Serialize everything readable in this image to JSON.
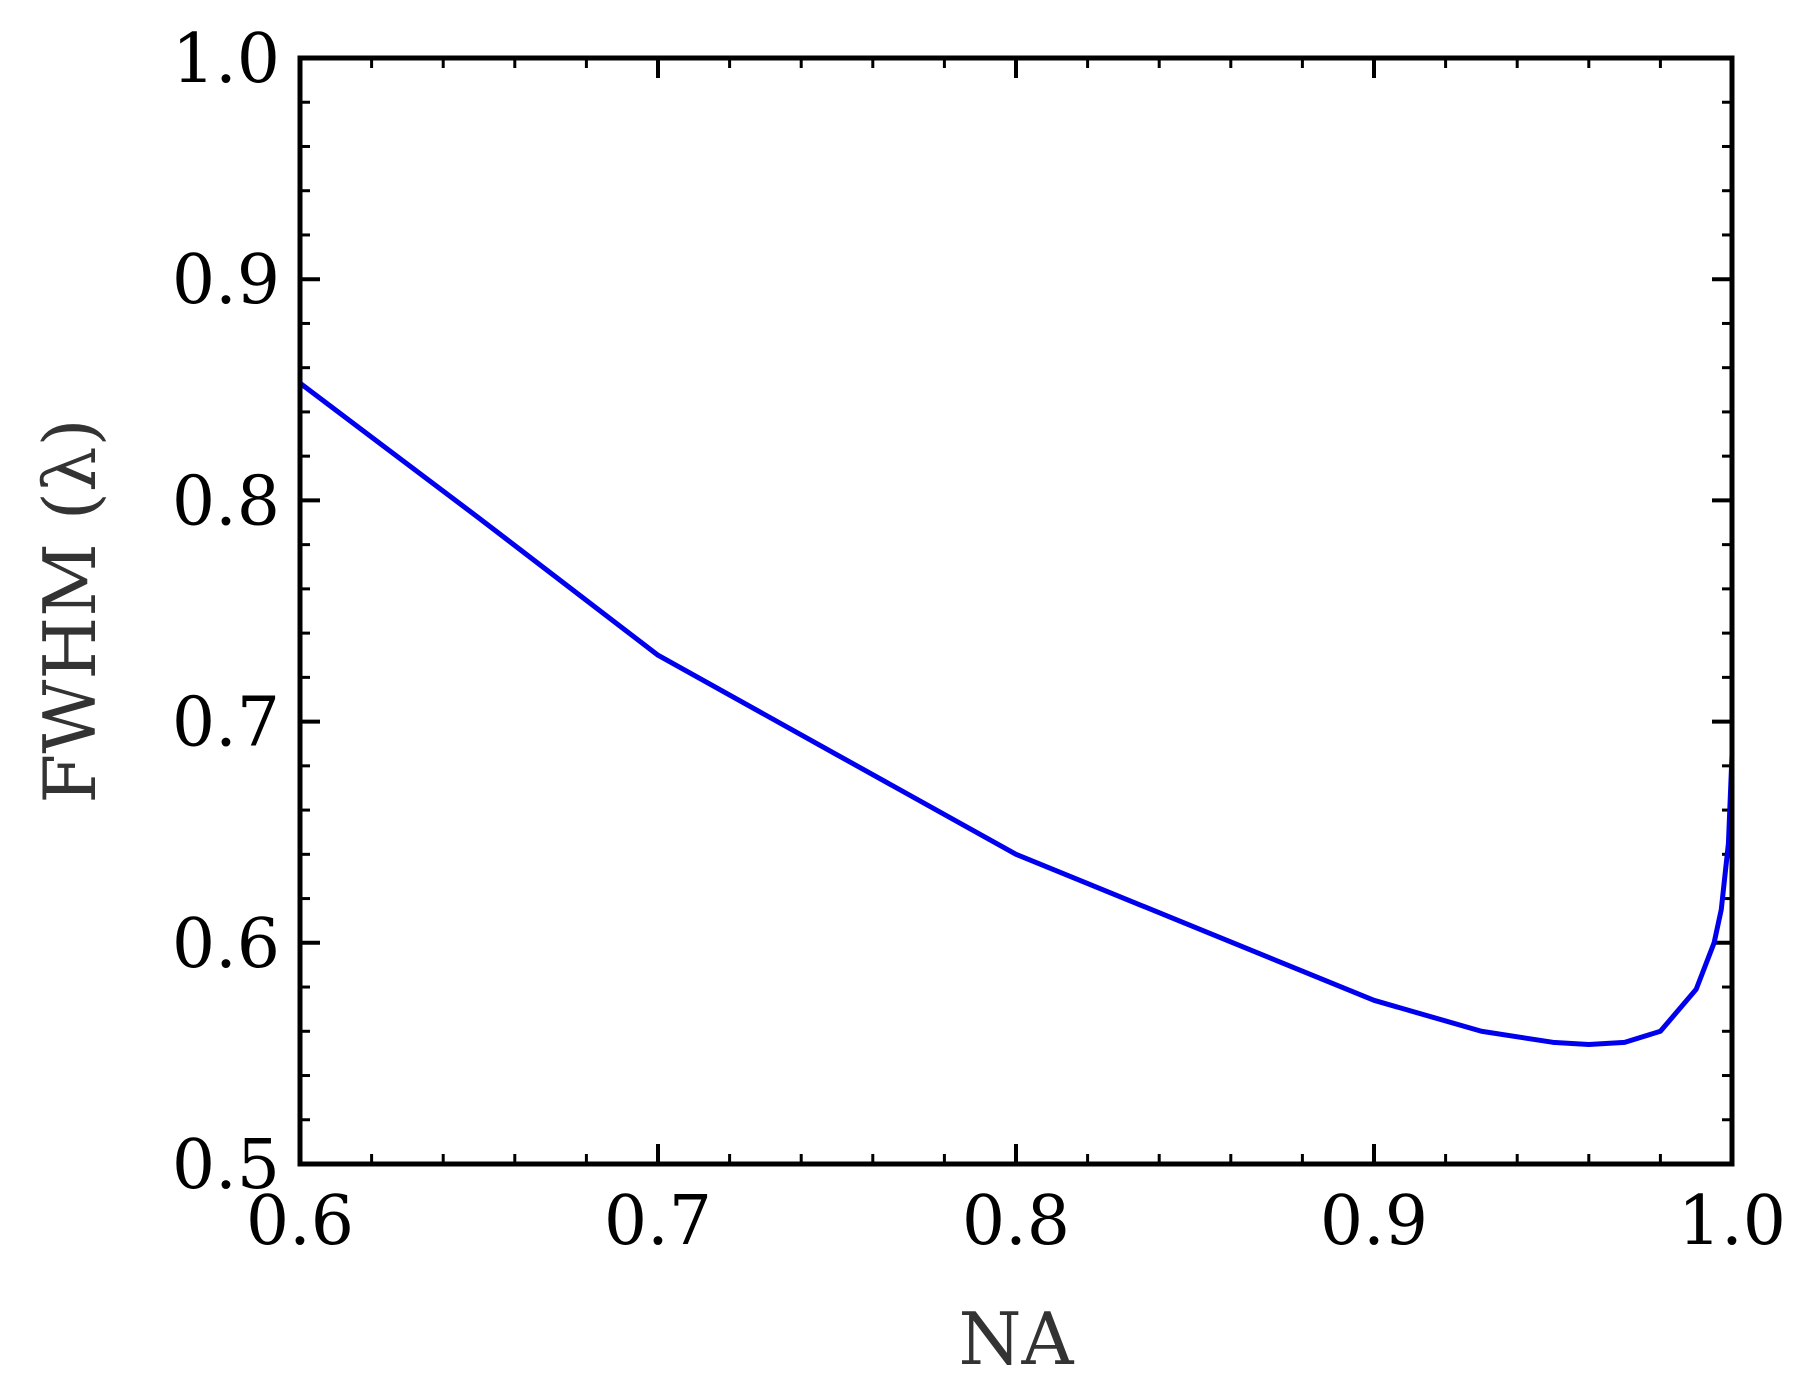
{
  "chart_data": {
    "type": "line",
    "xlabel": "NA",
    "ylabel": "FWHM (λ)",
    "xlim": [
      0.6,
      1.0
    ],
    "ylim": [
      0.5,
      1.0
    ],
    "x_ticks": [
      0.6,
      0.7,
      0.8,
      0.9,
      1.0
    ],
    "y_ticks": [
      0.5,
      0.6,
      0.7,
      0.8,
      0.9,
      1.0
    ],
    "x_tick_labels": [
      "0.6",
      "0.7",
      "0.8",
      "0.9",
      "1.0"
    ],
    "y_tick_labels": [
      "0.5",
      "0.6",
      "0.7",
      "0.8",
      "0.9",
      "1.0"
    ],
    "grid": false,
    "series": [
      {
        "color": "#0000ee",
        "x": [
          0.6,
          0.65,
          0.7,
          0.75,
          0.8,
          0.85,
          0.9,
          0.93,
          0.95,
          0.96,
          0.97,
          0.98,
          0.99,
          0.995,
          0.997,
          0.999,
          1.0
        ],
        "y": [
          0.853,
          0.792,
          0.73,
          0.685,
          0.64,
          0.607,
          0.574,
          0.56,
          0.555,
          0.554,
          0.555,
          0.56,
          0.579,
          0.6,
          0.615,
          0.645,
          0.685
        ]
      }
    ]
  }
}
